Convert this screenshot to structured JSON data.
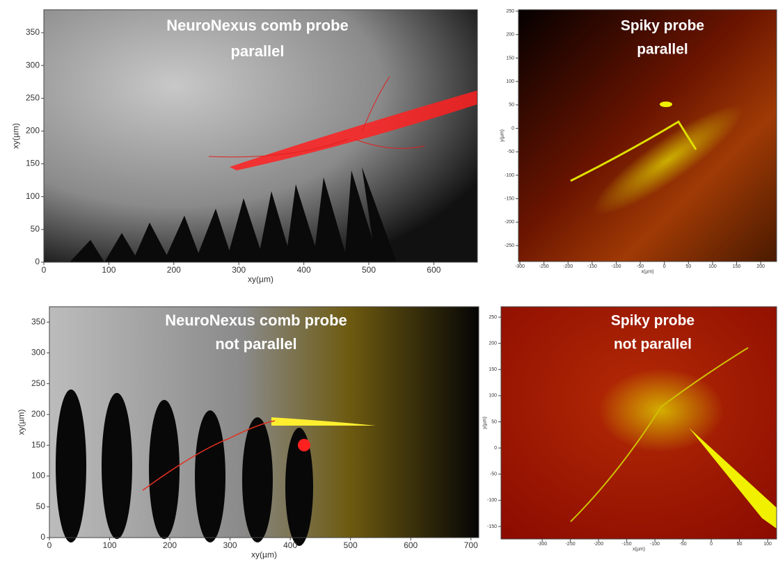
{
  "panels": [
    {
      "title": [
        "NeuroNexus comb probe",
        "parallel"
      ],
      "xlabel": "xy(µm)",
      "ylabel": "xy(µm)",
      "xlim": [
        0,
        667
      ],
      "ylim": [
        0,
        385
      ],
      "xticks": [
        0,
        100,
        200,
        300,
        400,
        500,
        600
      ],
      "yticks": [
        0,
        50,
        100,
        150,
        200,
        250,
        300,
        350
      ]
    },
    {
      "title": [
        "Spiky probe",
        "parallel"
      ],
      "xlabel": "x(µm)",
      "ylabel": "y(µm)",
      "xlim": [
        -303,
        233
      ],
      "ylim": [
        -284,
        253
      ],
      "xticks": [
        -300,
        -250,
        -200,
        -150,
        -100,
        -50,
        0,
        50,
        100,
        150,
        200
      ],
      "yticks": [
        -250,
        -200,
        -150,
        -100,
        -50,
        0,
        50,
        100,
        150,
        200,
        250
      ]
    },
    {
      "title": [
        "NeuroNexus comb probe",
        "not parallel"
      ],
      "xlabel": "xy(µm)",
      "ylabel": "xy(µm)",
      "xlim": [
        0,
        713
      ],
      "ylim": [
        0,
        375
      ],
      "xticks": [
        0,
        100,
        200,
        300,
        400,
        500,
        600,
        700
      ],
      "yticks": [
        0,
        50,
        100,
        150,
        200,
        250,
        300,
        350
      ]
    },
    {
      "title": [
        "Spiky probe",
        "not parallel"
      ],
      "xlabel": "x(µm)",
      "ylabel": "y(µm)",
      "xlim": [
        -373,
        116
      ],
      "ylim": [
        -174,
        270
      ],
      "xticks": [
        -300,
        -250,
        -200,
        -150,
        -100,
        -50,
        0,
        50,
        100
      ],
      "yticks": [
        -150,
        -100,
        -50,
        0,
        50,
        100,
        150,
        200,
        250
      ]
    }
  ]
}
